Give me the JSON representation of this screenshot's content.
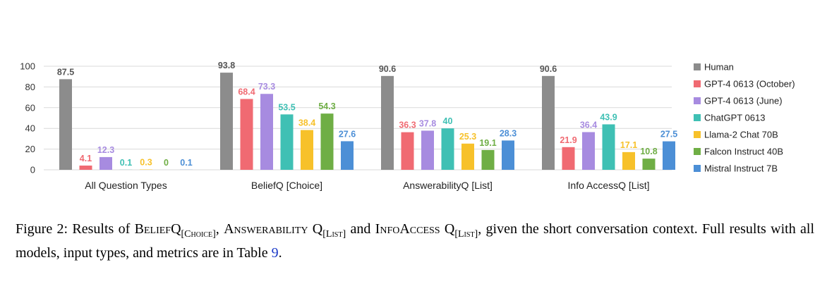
{
  "chart_data": {
    "type": "bar",
    "categories": [
      "All Question Types",
      "BeliefQ [Choice]",
      "AnswerabilityQ [List]",
      "Info AccessQ [List]"
    ],
    "ylim": [
      0,
      100
    ],
    "yticks": [
      0,
      20,
      40,
      60,
      80,
      100
    ],
    "grid": true,
    "legend_position": "right",
    "series": [
      {
        "name": "Human",
        "color": "#8c8c8c",
        "values": [
          87.5,
          93.8,
          90.6,
          90.6
        ],
        "labels": [
          "87.5",
          "93.8",
          "90.6",
          "90.6"
        ]
      },
      {
        "name": "GPT-4 0613 (October)",
        "color": "#f06a72",
        "values": [
          4.1,
          68.4,
          36.3,
          21.9
        ],
        "labels": [
          "4.1",
          "68.4",
          "36.3",
          "21.9"
        ]
      },
      {
        "name": "GPT-4 0613 (June)",
        "color": "#a78be0",
        "values": [
          12.3,
          73.3,
          37.8,
          36.4
        ],
        "labels": [
          "12.3",
          "73.3",
          "37.8",
          "36.4"
        ]
      },
      {
        "name": "ChatGPT 0613",
        "color": "#3fc0b4",
        "values": [
          0.1,
          53.5,
          40,
          43.9
        ],
        "labels": [
          "0.1",
          "53.5",
          "40",
          "43.9"
        ]
      },
      {
        "name": "Llama-2 Chat 70B",
        "color": "#f7c12a",
        "values": [
          0.3,
          38.4,
          25.3,
          17.1
        ],
        "labels": [
          "0.3",
          "38.4",
          "25.3",
          "17.1"
        ]
      },
      {
        "name": "Falcon Instruct 40B",
        "color": "#6fae45",
        "values": [
          0,
          54.3,
          19.1,
          10.8
        ],
        "labels": [
          "0",
          "54.3",
          "19.1",
          "10.8"
        ]
      },
      {
        "name": "Mistral Instruct 7B",
        "color": "#4c8fd6",
        "values": [
          0.1,
          27.6,
          28.3,
          27.5
        ],
        "labels": [
          "0.1",
          "27.6",
          "28.3",
          "27.5"
        ]
      }
    ]
  },
  "caption": {
    "figure_label": "Figure 2:",
    "text_1": "Results of ",
    "belief_main": "BeliefQ",
    "belief_sub": "[Choice]",
    "sep_1": ", ",
    "answer_main": "Answerability Q",
    "answer_sub": "[List]",
    "sep_2": " and ",
    "info_main": "InfoAccess Q",
    "info_sub": "[List]",
    "text_2": ", given the short conversation context. Full results with all models, input types, and metrics are in Table ",
    "table_ref": "9",
    "text_3": "."
  }
}
